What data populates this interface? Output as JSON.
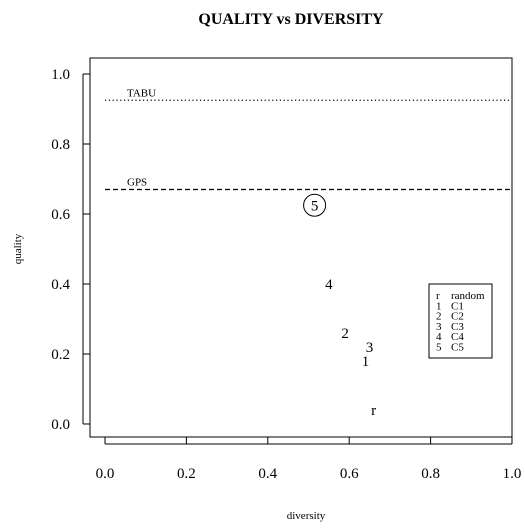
{
  "chart_data": {
    "type": "scatter",
    "title": "QUALITY vs DIVERSITY",
    "xlabel": "diversity",
    "ylabel": "quality",
    "xlim": [
      -0.05,
      1.0
    ],
    "ylim": [
      -0.05,
      1.05
    ],
    "x_ticks": [
      "0.0",
      "0.2",
      "0.4",
      "0.6",
      "0.8",
      "1.0"
    ],
    "x_tick_values": [
      0.0,
      0.2,
      0.4,
      0.6,
      0.8,
      1.0
    ],
    "y_ticks": [
      "0.0",
      "0.2",
      "0.4",
      "0.6",
      "0.8",
      "1.0"
    ],
    "y_tick_values": [
      0.0,
      0.2,
      0.4,
      0.6,
      0.8,
      1.0
    ],
    "grid": false,
    "points": [
      {
        "label": "r",
        "x": 0.66,
        "y": 0.04
      },
      {
        "label": "1",
        "x": 0.64,
        "y": 0.18
      },
      {
        "label": "2",
        "x": 0.59,
        "y": 0.26
      },
      {
        "label": "3",
        "x": 0.65,
        "y": 0.22
      },
      {
        "label": "4",
        "x": 0.55,
        "y": 0.4
      },
      {
        "label": "5",
        "x": 0.515,
        "y": 0.625,
        "circled": true
      }
    ],
    "reference_lines": [
      {
        "name": "TABU",
        "y": 0.925,
        "style": "dotted"
      },
      {
        "name": "GPS",
        "y": 0.67,
        "style": "dashed"
      }
    ],
    "legend": {
      "placement": "right",
      "entries": [
        {
          "key": "r",
          "label": "random"
        },
        {
          "key": "1",
          "label": "C1"
        },
        {
          "key": "2",
          "label": "C2"
        },
        {
          "key": "3",
          "label": "C3"
        },
        {
          "key": "4",
          "label": "C4"
        },
        {
          "key": "5",
          "label": "C5"
        }
      ]
    }
  }
}
